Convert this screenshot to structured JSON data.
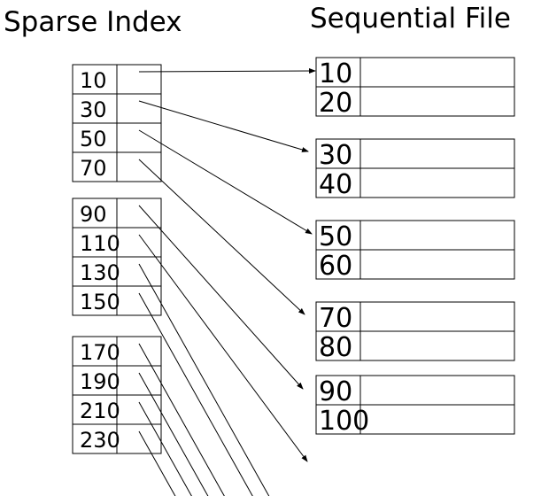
{
  "titles": {
    "left": "Sparse Index",
    "right": "Sequential File"
  },
  "index_blocks": [
    {
      "keys": [
        "10",
        "30",
        "50",
        "70"
      ]
    },
    {
      "keys": [
        "90",
        "110",
        "130",
        "150"
      ]
    },
    {
      "keys": [
        "170",
        "190",
        "210",
        "230"
      ]
    }
  ],
  "file_blocks": [
    {
      "keys": [
        "10",
        "20"
      ]
    },
    {
      "keys": [
        "30",
        "40"
      ]
    },
    {
      "keys": [
        "50",
        "60"
      ]
    },
    {
      "keys": [
        "70",
        "80"
      ]
    },
    {
      "keys": [
        "90",
        "100"
      ]
    }
  ],
  "colors": {
    "ink": "#000000",
    "background": "#ffffff"
  }
}
